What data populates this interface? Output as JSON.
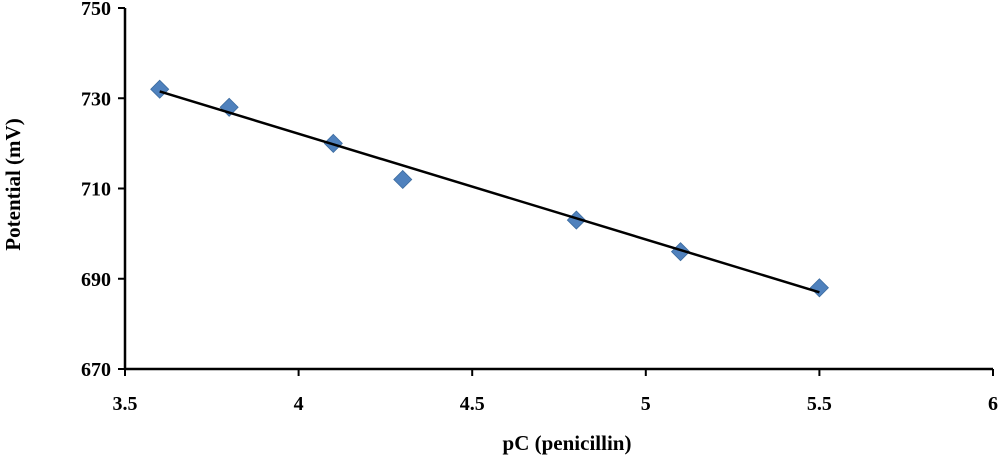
{
  "chart_data": {
    "type": "scatter",
    "title": "",
    "xlabel": "pC (penicillin)",
    "ylabel": "Potential (mV)",
    "xlim": [
      3.5,
      6
    ],
    "ylim": [
      670,
      750
    ],
    "x_ticks": [
      "3.5",
      "4",
      "4.5",
      "5",
      "5.5",
      "6"
    ],
    "y_ticks": [
      "670",
      "690",
      "710",
      "730",
      "750"
    ],
    "grid": false,
    "legend": "none",
    "series": [
      {
        "marker": "diamond",
        "color": "#4F81BD",
        "points": [
          {
            "x": 3.6,
            "y": 732
          },
          {
            "x": 3.8,
            "y": 728
          },
          {
            "x": 4.1,
            "y": 720
          },
          {
            "x": 4.3,
            "y": 712
          },
          {
            "x": 4.8,
            "y": 703
          },
          {
            "x": 5.1,
            "y": 696
          },
          {
            "x": 5.5,
            "y": 688
          }
        ]
      }
    ],
    "trendline": {
      "type": "linear",
      "color": "#000000",
      "from": {
        "x": 3.6,
        "y": 731.5
      },
      "to": {
        "x": 5.5,
        "y": 687
      }
    }
  }
}
